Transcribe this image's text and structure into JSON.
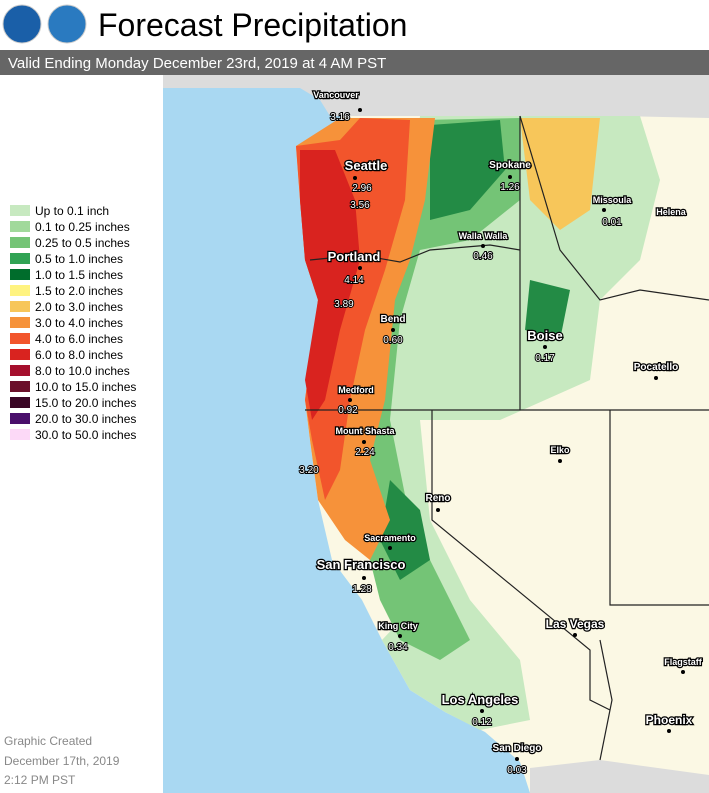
{
  "header": {
    "title": "Forecast Precipitation",
    "subtitle": "Valid Ending Monday December 23rd, 2019 at 4 AM PST"
  },
  "legend": [
    {
      "label": "Up to 0.1 inch",
      "color": "#c7e9c0"
    },
    {
      "label": "0.1 to 0.25 inches",
      "color": "#a1d99b"
    },
    {
      "label": "0.25 to 0.5 inches",
      "color": "#74c476"
    },
    {
      "label": "0.5 to 1.0 inches",
      "color": "#31a354"
    },
    {
      "label": "1.0 to 1.5 inches",
      "color": "#006d2c"
    },
    {
      "label": "1.5 to 2.0 inches",
      "color": "#fff380"
    },
    {
      "label": "2.0 to 3.0 inches",
      "color": "#f7c65a"
    },
    {
      "label": "3.0 to 4.0 inches",
      "color": "#f6923a"
    },
    {
      "label": "4.0 to 6.0 inches",
      "color": "#f2552c"
    },
    {
      "label": "6.0 to 8.0 inches",
      "color": "#d9231f"
    },
    {
      "label": "8.0 to 10.0 inches",
      "color": "#a50f2d"
    },
    {
      "label": "10.0 to 15.0 inches",
      "color": "#6b0f2a"
    },
    {
      "label": "15.0 to 20.0 inches",
      "color": "#3a0525"
    },
    {
      "label": "20.0 to 30.0 inches",
      "color": "#4a0f6b"
    },
    {
      "label": "30.0 to 50.0 inches",
      "color": "#fcd9f7"
    }
  ],
  "cities": [
    "Vancouver",
    "Seattle",
    "Spokane",
    "Missoula",
    "Helena",
    "Walla Walla",
    "Portland",
    "Bend",
    "Boise",
    "Pocatello",
    "Medford",
    "Mount Shasta",
    "Elko",
    "Reno",
    "Sacramento",
    "San Francisco",
    "King City",
    "Las Vegas",
    "Flagstaff",
    "Los Angeles",
    "Phoenix",
    "San Diego"
  ],
  "amounts": [
    "3.16",
    "2.96",
    "3.56",
    "1.26",
    "0.01",
    "0.46",
    "4.14",
    "3.89",
    "0.60",
    "0.17",
    "0.92",
    "2.24",
    "3.20",
    "1.28",
    "0.34",
    "0.12",
    "0.03"
  ],
  "footer": [
    "Graphic Created",
    "December 17th, 2019",
    "2:12 PM PST"
  ]
}
